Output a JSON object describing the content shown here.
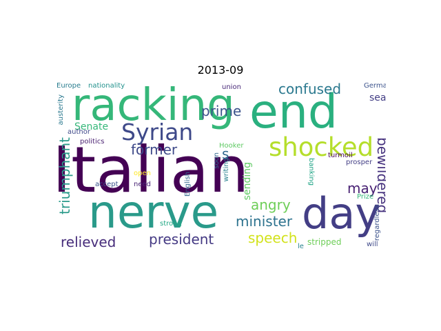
{
  "title": "2013-09",
  "words": [
    {
      "text": "Italian",
      "color": "#440154"
    },
    {
      "text": "racking",
      "color": "#35b779"
    },
    {
      "text": "end",
      "color": "#2ab07f"
    },
    {
      "text": "nerve",
      "color": "#2a9a8a"
    },
    {
      "text": "day",
      "color": "#433e85"
    },
    {
      "text": "shocked",
      "color": "#b5de2b"
    },
    {
      "text": "Syrian",
      "color": "#3e4989"
    },
    {
      "text": "confused",
      "color": "#2a788e"
    },
    {
      "text": "bewildered",
      "color": "#46327e"
    },
    {
      "text": "triumphant",
      "color": "#2a9a8a"
    },
    {
      "text": "relieved",
      "color": "#472d7b"
    },
    {
      "text": "president",
      "color": "#443983"
    },
    {
      "text": "prime",
      "color": "#3b528b"
    },
    {
      "text": "former",
      "color": "#3e4989"
    },
    {
      "text": "angry",
      "color": "#6ece58"
    },
    {
      "text": "minister",
      "color": "#2c728e"
    },
    {
      "text": "speech",
      "color": "#d2e21b"
    },
    {
      "text": "may",
      "color": "#482173"
    },
    {
      "text": "s",
      "color": "#31688e"
    },
    {
      "text": "seat",
      "color": "#433e85"
    },
    {
      "text": "sending",
      "color": "#5ec962"
    },
    {
      "text": "Senate",
      "color": "#35b779"
    },
    {
      "text": "Europe",
      "color": "#287c8e"
    },
    {
      "text": "nationality",
      "color": "#21918c"
    },
    {
      "text": "union",
      "color": "#482878"
    },
    {
      "text": "Germany",
      "color": "#3b528b"
    },
    {
      "text": "austerity",
      "color": "#2a788e"
    },
    {
      "text": "author",
      "color": "#3e4989"
    },
    {
      "text": "politics",
      "color": "#481f70"
    },
    {
      "text": "Hooker",
      "color": "#5ec962"
    },
    {
      "text": "soon",
      "color": "#31688e"
    },
    {
      "text": "writing",
      "color": "#27808e"
    },
    {
      "text": "banking",
      "color": "#20a486"
    },
    {
      "text": "turmoil",
      "color": "#440154"
    },
    {
      "text": "prosper",
      "color": "#433e85"
    },
    {
      "text": "open",
      "color": "#fde725"
    },
    {
      "text": "accept",
      "color": "#3b528b"
    },
    {
      "text": "need",
      "color": "#482475"
    },
    {
      "text": "English",
      "color": "#31688e"
    },
    {
      "text": "Prize",
      "color": "#35b779"
    },
    {
      "text": "regardless",
      "color": "#3b528b"
    },
    {
      "text": "strong",
      "color": "#22a884"
    },
    {
      "text": "stripped",
      "color": "#6ece58"
    },
    {
      "text": "will",
      "color": "#3e4989"
    },
    {
      "text": "le",
      "color": "#26828e"
    }
  ]
}
